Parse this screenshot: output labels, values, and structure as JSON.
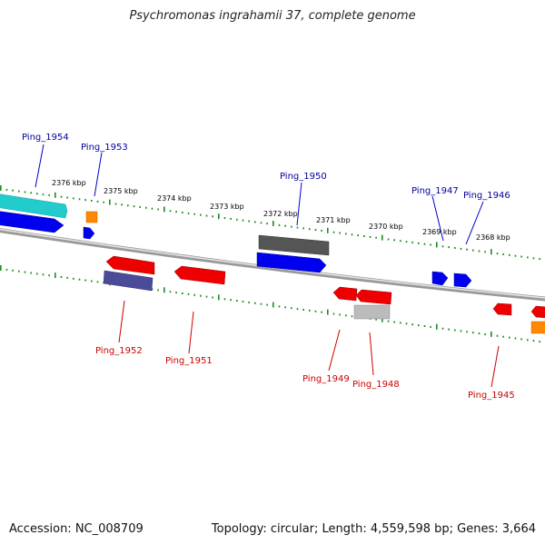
{
  "title": "Psychromonas ingrahamii 37, complete genome",
  "accession": "Accession: NC_008709",
  "summary": "Topology: circular; Length: 4,559,598 bp; Genes: 3,664",
  "colors": {
    "forward_label": "#00009b",
    "reverse_label": "#cc0000",
    "backbone": "#888888",
    "ruler_dot": "#1a8c1a",
    "cds_forward": "#0000ff",
    "cds_reverse": "#ff0000",
    "teal": "#22cccc",
    "orange": "#ff8800",
    "gray": "#555555",
    "lightgray": "#bbbbbb",
    "indigo": "#4b4b99"
  },
  "ruler_labels": [
    "2376 kbp",
    "2375 kbp",
    "2374 kbp",
    "2373 kbp",
    "2372 kbp",
    "2371 kbp",
    "2370 kbp",
    "2369 kbp",
    "2368 kbp"
  ],
  "forward_genes": [
    "Ping_1954",
    "Ping_1953",
    "Ping_1950",
    "Ping_1947",
    "Ping_1946"
  ],
  "reverse_genes": [
    "Ping_1952",
    "Ping_1951",
    "Ping_1949",
    "Ping_1948",
    "Ping_1945"
  ]
}
